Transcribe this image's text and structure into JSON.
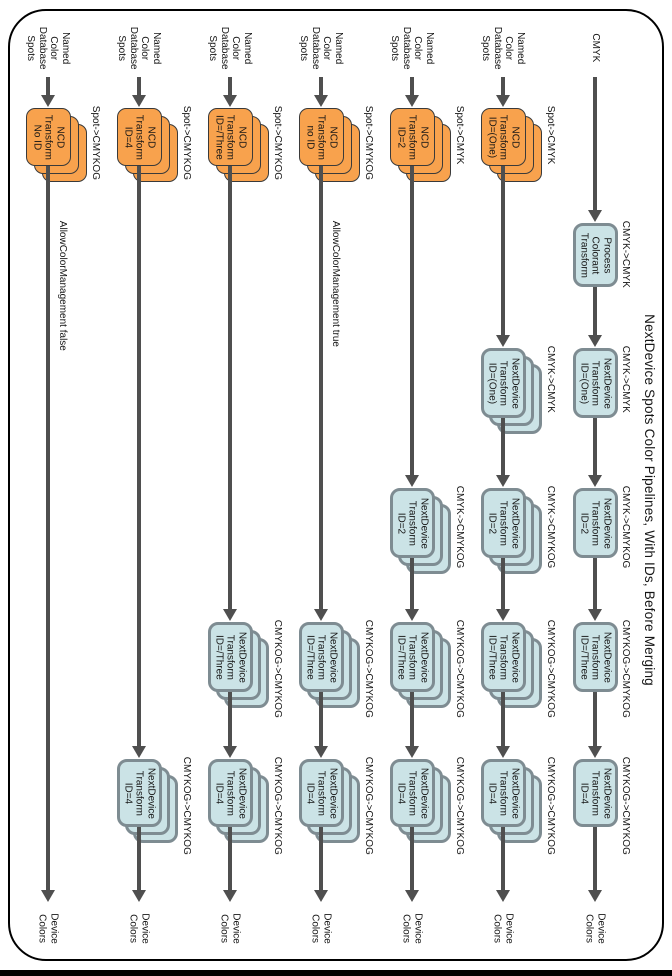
{
  "title": "NextDevice Spots Color Pipelines, With IDs, Before Merging",
  "colors": {
    "spot_fill": "#F8A24D",
    "spot_border": "#3A3A3A",
    "device_fill": "#CBE3E6",
    "device_border": "#7E8C92",
    "arrow": "#4F4F4F",
    "text": "#151515",
    "page_border": "#000000"
  },
  "columns": [
    {
      "id": "pipeline-1",
      "source": [
        "Named",
        "Color",
        "Database",
        "Spots"
      ],
      "note": "AllowColorManagement false",
      "nodes": [
        {
          "row": "ncd",
          "type": "spot",
          "stacked": true,
          "lines": [
            "NCD",
            "Transform",
            "No ID"
          ],
          "io": "Spot->CMYKOG"
        }
      ],
      "sink": [
        "Device",
        "Colors"
      ]
    },
    {
      "id": "pipeline-2",
      "source": [
        "Named",
        "Color",
        "Database",
        "Spots"
      ],
      "nodes": [
        {
          "row": "ncd",
          "type": "spot",
          "stacked": true,
          "lines": [
            "NCD",
            "Transform",
            "ID=4"
          ],
          "io": "Spot->CMYKOG"
        },
        {
          "row": "four",
          "type": "device",
          "stacked": true,
          "lines": [
            "NextDevice",
            "Transform",
            "ID=4"
          ],
          "io": "CMYKOG->CMYKOG"
        }
      ],
      "sink": [
        "Device",
        "Colors"
      ]
    },
    {
      "id": "pipeline-3",
      "source": [
        "Named",
        "Color",
        "Database",
        "Spots"
      ],
      "nodes": [
        {
          "row": "ncd",
          "type": "spot",
          "stacked": true,
          "lines": [
            "NCD",
            "Transform",
            "ID=/Three"
          ],
          "io": "Spot->CMYKOG"
        },
        {
          "row": "three",
          "type": "device",
          "stacked": true,
          "lines": [
            "NextDevice",
            "Transform",
            "ID=/Three"
          ],
          "io": "CMYKOG->CMYKOG"
        },
        {
          "row": "four",
          "type": "device",
          "stacked": true,
          "lines": [
            "NextDevice",
            "Transform",
            "ID=4"
          ],
          "io": "CMYKOG->CMYKOG"
        }
      ],
      "sink": [
        "Device",
        "Colors"
      ]
    },
    {
      "id": "pipeline-4",
      "source": [
        "Named",
        "Color",
        "Database",
        "Spots"
      ],
      "note": "AllowColorManagement true",
      "nodes": [
        {
          "row": "ncd",
          "type": "spot",
          "stacked": true,
          "lines": [
            "NCD",
            "Transform",
            "no ID"
          ],
          "io": "Spot->CMYKOG"
        },
        {
          "row": "three",
          "type": "device",
          "stacked": true,
          "lines": [
            "NextDevice",
            "Transform",
            "ID=/Three"
          ],
          "io": "CMYKOG->CMYKOG"
        },
        {
          "row": "four",
          "type": "device",
          "stacked": true,
          "lines": [
            "NextDevice",
            "Transform",
            "ID=4"
          ],
          "io": "CMYKOG->CMYKOG"
        }
      ],
      "sink": [
        "Device",
        "Colors"
      ]
    },
    {
      "id": "pipeline-5",
      "source": [
        "Named",
        "Color",
        "Database",
        "Spots"
      ],
      "nodes": [
        {
          "row": "ncd",
          "type": "spot",
          "stacked": true,
          "lines": [
            "NCD",
            "Transform",
            "ID=2"
          ],
          "io": "Spot->CMYK"
        },
        {
          "row": "two",
          "type": "device",
          "stacked": true,
          "lines": [
            "NextDevice",
            "Transform",
            "ID=2"
          ],
          "io": "CMYK->CMYKOG"
        },
        {
          "row": "three",
          "type": "device",
          "stacked": true,
          "lines": [
            "NextDevice",
            "Transform",
            "ID=/Three"
          ],
          "io": "CMYKOG->CMYKOG"
        },
        {
          "row": "four",
          "type": "device",
          "stacked": true,
          "lines": [
            "NextDevice",
            "Transform",
            "ID=4"
          ],
          "io": "CMYKOG->CMYKOG"
        }
      ],
      "sink": [
        "Device",
        "Colors"
      ]
    },
    {
      "id": "pipeline-6",
      "source": [
        "Named",
        "Color",
        "Database",
        "Spots"
      ],
      "nodes": [
        {
          "row": "ncd",
          "type": "spot",
          "stacked": true,
          "lines": [
            "NCD",
            "Transform",
            "ID=(One)"
          ],
          "io": "Spot->CMYK"
        },
        {
          "row": "one",
          "type": "device",
          "stacked": true,
          "lines": [
            "NextDevice",
            "Transform",
            "ID=(One)"
          ],
          "io": "CMYK->CMYK"
        },
        {
          "row": "two",
          "type": "device",
          "stacked": true,
          "lines": [
            "NextDevice",
            "Transform",
            "ID=2"
          ],
          "io": "CMYK->CMYKOG"
        },
        {
          "row": "three",
          "type": "device",
          "stacked": true,
          "lines": [
            "NextDevice",
            "Transform",
            "ID=/Three"
          ],
          "io": "CMYKOG->CMYKOG"
        },
        {
          "row": "four",
          "type": "device",
          "stacked": true,
          "lines": [
            "NextDevice",
            "Transform",
            "ID=4"
          ],
          "io": "CMYKOG->CMYKOG"
        }
      ],
      "sink": [
        "Device",
        "Colors"
      ]
    },
    {
      "id": "pipeline-7",
      "source": [
        "CMYK"
      ],
      "nodes": [
        {
          "row": "pct",
          "type": "device",
          "stacked": false,
          "lines": [
            "Process",
            "Colorant",
            "Transform"
          ],
          "io": "CMYK->CMYK"
        },
        {
          "row": "one",
          "type": "device",
          "stacked": false,
          "lines": [
            "NextDevice",
            "Transform",
            "ID=(One)"
          ],
          "io": "CMYK->CMYK"
        },
        {
          "row": "two",
          "type": "device",
          "stacked": false,
          "lines": [
            "NextDevice",
            "Transform",
            "ID=2"
          ],
          "io": "CMYK->CMYKOG"
        },
        {
          "row": "three",
          "type": "device",
          "stacked": false,
          "lines": [
            "NextDevice",
            "Transform",
            "ID=/Three"
          ],
          "io": "CMYKOG->CMYKOG"
        },
        {
          "row": "four",
          "type": "device",
          "stacked": false,
          "lines": [
            "NextDevice",
            "Transform",
            "ID=4"
          ],
          "io": "CMYKOG->CMYKOG"
        }
      ],
      "sink": [
        "Device",
        "Colors"
      ]
    }
  ]
}
